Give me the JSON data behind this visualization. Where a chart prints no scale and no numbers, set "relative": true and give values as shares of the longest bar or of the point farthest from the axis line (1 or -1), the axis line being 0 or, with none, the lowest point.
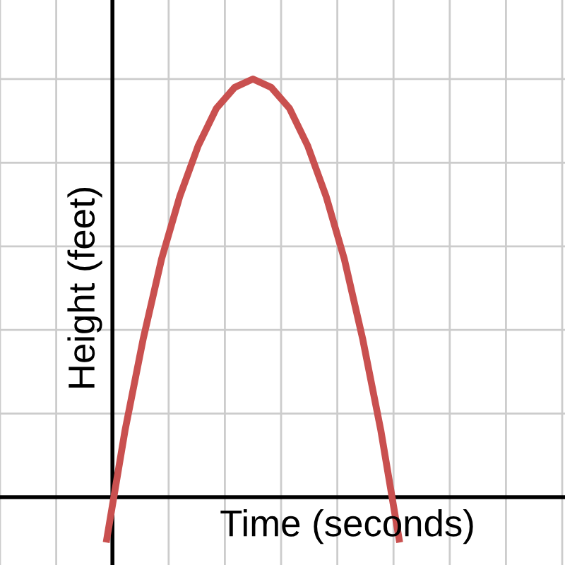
{
  "chart_data": {
    "type": "line",
    "relative": true,
    "xlabel": "Time (seconds)",
    "ylabel": "Height (feet)",
    "categories": [
      null,
      null,
      null,
      null,
      null,
      null,
      null,
      null,
      null,
      null,
      null,
      null,
      null,
      null,
      null,
      null,
      null
    ],
    "series": [
      {
        "color": "#c9504f",
        "values": [
          -0.1,
          0.16,
          0.38,
          0.57,
          0.72,
          0.84,
          0.93,
          0.98,
          1,
          0.98,
          0.93,
          0.84,
          0.72,
          0.57,
          0.38,
          0.16,
          -0.1
        ]
      }
    ],
    "grid": true,
    "marker": "none",
    "line_style": "solid",
    "legend": false
  }
}
